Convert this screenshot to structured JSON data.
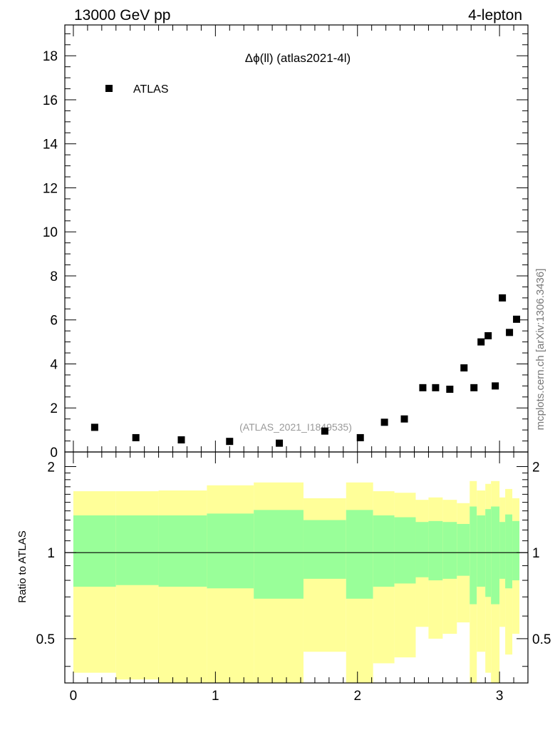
{
  "header": {
    "left": "13000 GeV pp",
    "right": "4-lepton"
  },
  "side_label": "mcplots.cern.ch [arXiv:1306.3436]",
  "colors": {
    "band_outer": "#ffff99",
    "band_inner": "#99ff99",
    "marker": "#000000",
    "watermark": "#999999"
  },
  "chart_data": [
    {
      "type": "scatter",
      "title": "Δϕ(ll) (atlas2021-4l)",
      "watermark": "(ATLAS_2021_I1849535)",
      "legend": {
        "entries": [
          "ATLAS"
        ],
        "placement": "top-left"
      },
      "xlim": [
        -0.06,
        3.2
      ],
      "ylim": [
        0,
        19.4
      ],
      "yticks": [
        0,
        2,
        4,
        6,
        8,
        10,
        12,
        14,
        16,
        18
      ],
      "yticklabels": [
        "0",
        "2",
        "4",
        "6",
        "8",
        "10",
        "12",
        "14",
        "16",
        "18"
      ],
      "series": [
        {
          "name": "ATLAS",
          "marker": "square",
          "x": [
            0.15,
            0.44,
            0.76,
            1.1,
            1.45,
            1.77,
            2.02,
            2.19,
            2.33,
            2.46,
            2.55,
            2.65,
            2.75,
            2.82,
            2.87,
            2.92,
            2.97,
            3.02,
            3.07,
            3.12
          ],
          "y": [
            1.12,
            0.65,
            0.55,
            0.48,
            0.4,
            0.95,
            0.65,
            1.35,
            1.5,
            2.92,
            2.92,
            2.85,
            3.82,
            2.92,
            5.0,
            5.28,
            3.0,
            7.0,
            5.43,
            6.03
          ]
        }
      ],
      "grid": false
    },
    {
      "type": "area",
      "ylabel": "Ratio to ATLAS",
      "xlim": [
        -0.06,
        3.2
      ],
      "ylim": [
        0.35,
        2.25
      ],
      "xticks": [
        0,
        1,
        2,
        3
      ],
      "xticklabels": [
        "0",
        "1",
        "2",
        "3"
      ],
      "yticks": [
        0.5,
        1,
        2
      ],
      "yticklabels": [
        "0.5",
        "1",
        "2"
      ],
      "reference_line": 1.0,
      "bins": [
        {
          "lo": 0.0,
          "hi": 0.3,
          "outer": [
            0.38,
            1.64
          ],
          "inner": [
            0.76,
            1.35
          ]
        },
        {
          "lo": 0.3,
          "hi": 0.6,
          "outer": [
            0.36,
            1.64
          ],
          "inner": [
            0.77,
            1.35
          ]
        },
        {
          "lo": 0.6,
          "hi": 0.94,
          "outer": [
            0.33,
            1.65
          ],
          "inner": [
            0.76,
            1.35
          ]
        },
        {
          "lo": 0.94,
          "hi": 1.27,
          "outer": [
            0.31,
            1.72
          ],
          "inner": [
            0.75,
            1.37
          ]
        },
        {
          "lo": 1.27,
          "hi": 1.62,
          "outer": [
            0.31,
            1.76
          ],
          "inner": [
            0.69,
            1.41
          ]
        },
        {
          "lo": 1.62,
          "hi": 1.92,
          "outer": [
            0.45,
            1.55
          ],
          "inner": [
            0.81,
            1.3
          ]
        },
        {
          "lo": 1.92,
          "hi": 2.11,
          "outer": [
            0.3,
            1.76
          ],
          "inner": [
            0.69,
            1.41
          ]
        },
        {
          "lo": 2.11,
          "hi": 2.26,
          "outer": [
            0.41,
            1.64
          ],
          "inner": [
            0.76,
            1.35
          ]
        },
        {
          "lo": 2.26,
          "hi": 2.41,
          "outer": [
            0.43,
            1.62
          ],
          "inner": [
            0.78,
            1.33
          ]
        },
        {
          "lo": 2.41,
          "hi": 2.5,
          "outer": [
            0.55,
            1.53
          ],
          "inner": [
            0.82,
            1.28
          ]
        },
        {
          "lo": 2.5,
          "hi": 2.6,
          "outer": [
            0.5,
            1.56
          ],
          "inner": [
            0.8,
            1.29
          ]
        },
        {
          "lo": 2.6,
          "hi": 2.7,
          "outer": [
            0.52,
            1.53
          ],
          "inner": [
            0.81,
            1.28
          ]
        },
        {
          "lo": 2.7,
          "hi": 2.79,
          "outer": [
            0.57,
            1.49
          ],
          "inner": [
            0.83,
            1.26
          ]
        },
        {
          "lo": 2.79,
          "hi": 2.84,
          "outer": [
            0.35,
            1.78
          ],
          "inner": [
            0.66,
            1.45
          ]
        },
        {
          "lo": 2.84,
          "hi": 2.9,
          "outer": [
            0.45,
            1.65
          ],
          "inner": [
            0.76,
            1.35
          ]
        },
        {
          "lo": 2.9,
          "hi": 2.94,
          "outer": [
            0.38,
            1.74
          ],
          "inner": [
            0.7,
            1.42
          ]
        },
        {
          "lo": 2.94,
          "hi": 3.0,
          "outer": [
            0.35,
            1.78
          ],
          "inner": [
            0.66,
            1.45
          ]
        },
        {
          "lo": 3.0,
          "hi": 3.04,
          "outer": [
            0.55,
            1.56
          ],
          "inner": [
            0.81,
            1.28
          ]
        },
        {
          "lo": 3.04,
          "hi": 3.09,
          "outer": [
            0.44,
            1.67
          ],
          "inner": [
            0.75,
            1.36
          ]
        },
        {
          "lo": 3.09,
          "hi": 3.14,
          "outer": [
            0.52,
            1.55
          ],
          "inner": [
            0.8,
            1.29
          ]
        }
      ]
    }
  ]
}
